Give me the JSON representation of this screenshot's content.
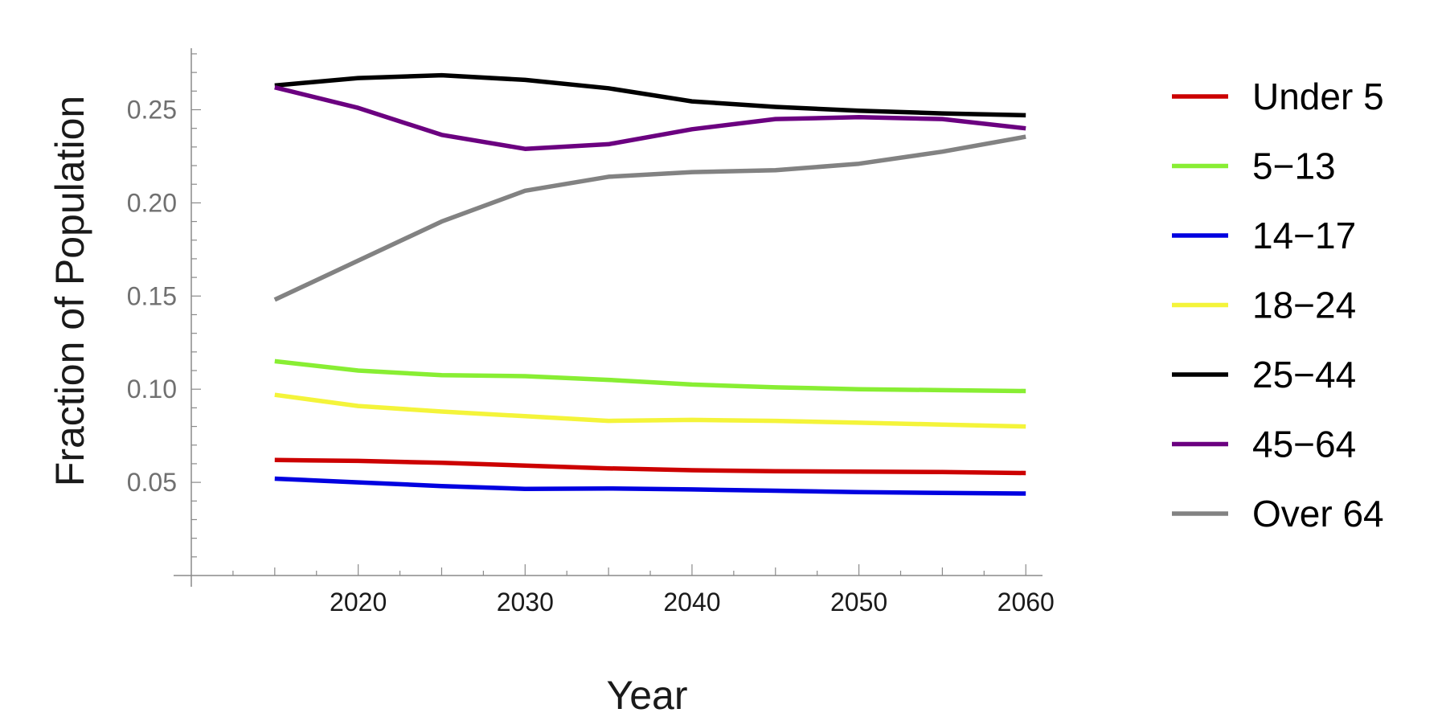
{
  "chart_data": {
    "type": "line",
    "title": "",
    "xlabel": "Year",
    "ylabel": "Fraction of Population",
    "xlim": [
      2010,
      2061
    ],
    "ylim": [
      0,
      0.283
    ],
    "x_ticks": [
      2020,
      2030,
      2040,
      2050,
      2060
    ],
    "x_tick_labels": [
      "2020",
      "2030",
      "2040",
      "2050",
      "2060"
    ],
    "y_ticks": [
      0.05,
      0.1,
      0.15,
      0.2,
      0.25
    ],
    "y_tick_labels": [
      "0.05",
      "0.10",
      "0.15",
      "0.20",
      "0.25"
    ],
    "grid": false,
    "legend_position": "right",
    "x": [
      2015,
      2020,
      2025,
      2030,
      2035,
      2040,
      2045,
      2050,
      2055,
      2060
    ],
    "series": [
      {
        "name": "Under 5",
        "color": "#cc0000",
        "values": [
          0.062,
          0.0615,
          0.0605,
          0.059,
          0.0575,
          0.0565,
          0.056,
          0.0558,
          0.0555,
          0.055
        ]
      },
      {
        "name": "5−13",
        "color": "#88ee33",
        "values": [
          0.115,
          0.11,
          0.1075,
          0.107,
          0.105,
          0.1025,
          0.101,
          0.1,
          0.0995,
          0.099
        ]
      },
      {
        "name": "14−17",
        "color": "#0000e0",
        "values": [
          0.052,
          0.05,
          0.048,
          0.0465,
          0.0467,
          0.0462,
          0.0455,
          0.0448,
          0.0443,
          0.044
        ]
      },
      {
        "name": "18−24",
        "color": "#f4f43a",
        "values": [
          0.097,
          0.091,
          0.088,
          0.0855,
          0.083,
          0.0835,
          0.083,
          0.082,
          0.081,
          0.08
        ]
      },
      {
        "name": "25−44",
        "color": "#000000",
        "values": [
          0.263,
          0.267,
          0.2685,
          0.266,
          0.2615,
          0.2545,
          0.2515,
          0.2495,
          0.248,
          0.247
        ]
      },
      {
        "name": "45−64",
        "color": "#6b0080",
        "values": [
          0.262,
          0.251,
          0.2365,
          0.229,
          0.2315,
          0.2395,
          0.245,
          0.246,
          0.245,
          0.24
        ]
      },
      {
        "name": "Over 64",
        "color": "#828282",
        "values": [
          0.148,
          0.169,
          0.19,
          0.2065,
          0.214,
          0.2165,
          0.2175,
          0.221,
          0.2275,
          0.2355
        ]
      }
    ]
  }
}
